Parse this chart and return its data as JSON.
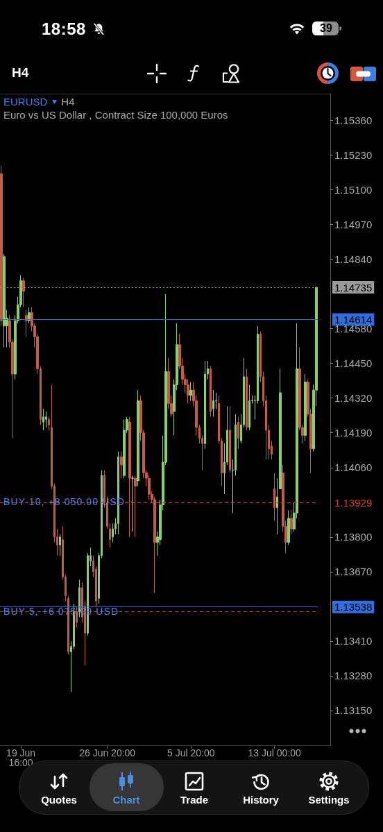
{
  "chart_data": {
    "type": "candlestick",
    "title": "EURUSD",
    "subtitle": "Euro vs US Dollar , Contract Size 100,000 Euros",
    "annotations": [
      "18:58",
      "39",
      "H4",
      "H4",
      {
        "text": "BUY 10, +8 050.00 USD",
        "y": 1.13929
      },
      {
        "text": "BUY 5, +6 075.00 USD",
        "y": 1.1352
      },
      "Quotes",
      "Chart",
      "Trade",
      "History",
      "Settings"
    ],
    "categories": [
      null,
      null,
      null,
      null,
      null,
      null,
      null,
      "19 Jun 16:00",
      null,
      null,
      null,
      null,
      null,
      null,
      null,
      null,
      null,
      null,
      null,
      null,
      null,
      null,
      null,
      null,
      null,
      null,
      null,
      null,
      null,
      null,
      null,
      null,
      null,
      null,
      null,
      null,
      null,
      null,
      "26 Jun 20:00",
      null,
      null,
      null,
      null,
      null,
      null,
      null,
      null,
      null,
      null,
      null,
      null,
      null,
      null,
      null,
      null,
      null,
      null,
      null,
      null,
      null,
      null,
      null,
      null,
      null,
      null,
      null,
      null,
      null,
      "5 Jul 20:00",
      null,
      null,
      null,
      null,
      null,
      null,
      null,
      null,
      null,
      null,
      null,
      null,
      null,
      null,
      null,
      null,
      null,
      null,
      null,
      null,
      null,
      null,
      null,
      null,
      null,
      null,
      null,
      null,
      null,
      "13 Jul 00:00",
      null,
      null,
      null,
      null,
      null,
      null,
      null,
      null,
      null,
      null,
      null,
      null,
      null,
      null,
      null
    ],
    "ohlc": [
      [
        1.1516,
        1.1519,
        1.1459,
        1.1461
      ],
      [
        1.1459,
        1.1486,
        1.1451,
        1.1485
      ],
      [
        1.1459,
        1.1465,
        1.1451,
        1.1462
      ],
      [
        1.1461,
        1.1463,
        1.1451,
        1.1453
      ],
      [
        1.1453,
        1.1454,
        1.1417,
        1.1441
      ],
      [
        1.1441,
        1.1463,
        1.1439,
        1.1461
      ],
      [
        1.1461,
        1.147,
        1.146,
        1.1467
      ],
      [
        1.1467,
        1.1478,
        1.1466,
        1.1476
      ],
      [
        1.1476,
        1.1477,
        1.1466,
        1.1472
      ],
      [
        1.1463,
        1.1465,
        1.1455,
        1.1461
      ],
      [
        1.1461,
        1.1466,
        1.146,
        1.1464
      ],
      [
        1.1464,
        1.1466,
        1.1457,
        1.1459
      ],
      [
        1.1459,
        1.146,
        1.1451,
        1.1455
      ],
      [
        1.1455,
        1.1456,
        1.1441,
        1.1443
      ],
      [
        1.1443,
        1.1444,
        1.1422,
        1.1424
      ],
      [
        1.1423,
        1.1428,
        1.142,
        1.1425
      ],
      [
        1.1424,
        1.1427,
        1.1421,
        1.1425
      ],
      [
        1.1424,
        1.1425,
        1.142,
        1.1422
      ],
      [
        1.1421,
        1.1437,
        1.1398,
        1.1399
      ],
      [
        1.1399,
        1.14,
        1.1378,
        1.138
      ],
      [
        1.138,
        1.1383,
        1.1373,
        1.1377
      ],
      [
        1.1377,
        1.1381,
        1.1373,
        1.138
      ],
      [
        1.1379,
        1.1384,
        1.1364,
        1.1365
      ],
      [
        1.1365,
        1.1366,
        1.1356,
        1.1358
      ],
      [
        1.1357,
        1.1358,
        1.1336,
        1.1337
      ],
      [
        1.1337,
        1.1341,
        1.1322,
        1.1339
      ],
      [
        1.1339,
        1.1355,
        1.1338,
        1.1352
      ],
      [
        1.1352,
        1.1354,
        1.1346,
        1.1348
      ],
      [
        1.1352,
        1.1364,
        1.135,
        1.1361
      ],
      [
        1.1361,
        1.1363,
        1.1348,
        1.135
      ],
      [
        1.1354,
        1.1356,
        1.1332,
        1.1344
      ],
      [
        1.1344,
        1.1374,
        1.1343,
        1.1373
      ],
      [
        1.1371,
        1.1376,
        1.1369,
        1.1373
      ],
      [
        1.1371,
        1.1373,
        1.1365,
        1.1367
      ],
      [
        1.1368,
        1.1369,
        1.1354,
        1.1356
      ],
      [
        1.1357,
        1.1374,
        1.1355,
        1.1373
      ],
      [
        1.1373,
        1.1405,
        1.1372,
        1.1403
      ],
      [
        1.1403,
        1.1405,
        1.1391,
        1.1393
      ],
      [
        1.1393,
        1.1395,
        1.1383,
        1.1384
      ],
      [
        1.1383,
        1.1385,
        1.1376,
        1.1379
      ],
      [
        1.138,
        1.1385,
        1.1378,
        1.1383
      ],
      [
        1.1383,
        1.1387,
        1.1381,
        1.1385
      ],
      [
        1.1385,
        1.1412,
        1.1381,
        1.141
      ],
      [
        1.141,
        1.1412,
        1.1402,
        1.1407
      ],
      [
        1.1403,
        1.1424,
        1.1402,
        1.142
      ],
      [
        1.142,
        1.1425,
        1.1419,
        1.1424
      ],
      [
        1.1423,
        1.1425,
        1.138,
        1.1402
      ],
      [
        1.1402,
        1.1403,
        1.1382,
        1.1402
      ],
      [
        1.1402,
        1.1403,
        1.138,
        1.1399
      ],
      [
        1.1401,
        1.1435,
        1.1399,
        1.1431
      ],
      [
        1.1431,
        1.1433,
        1.1416,
        1.1419
      ],
      [
        1.1419,
        1.142,
        1.1402,
        1.1404
      ],
      [
        1.1404,
        1.1405,
        1.1399,
        1.1402
      ],
      [
        1.1402,
        1.1403,
        1.1394,
        1.1396
      ],
      [
        1.1396,
        1.1397,
        1.1393,
        1.1394
      ],
      [
        1.1394,
        1.1395,
        1.1359,
        1.1378
      ],
      [
        1.1378,
        1.1382,
        1.1373,
        1.138
      ],
      [
        1.1379,
        1.1394,
        1.1377,
        1.1392
      ],
      [
        1.1392,
        1.1418,
        1.139,
        1.1408
      ],
      [
        1.1408,
        1.1471,
        1.1407,
        1.1442
      ],
      [
        1.1442,
        1.1447,
        1.1428,
        1.143
      ],
      [
        1.143,
        1.1433,
        1.1425,
        1.1426
      ],
      [
        1.1427,
        1.1439,
        1.1418,
        1.1437
      ],
      [
        1.1437,
        1.146,
        1.1435,
        1.1452
      ],
      [
        1.1452,
        1.1456,
        1.1443,
        1.1444
      ],
      [
        1.1444,
        1.1447,
        1.1437,
        1.1439
      ],
      [
        1.1439,
        1.1441,
        1.1434,
        1.1437
      ],
      [
        1.1437,
        1.1439,
        1.143,
        1.1433
      ],
      [
        1.1433,
        1.1438,
        1.1431,
        1.1435
      ],
      [
        1.1435,
        1.1438,
        1.1429,
        1.1431
      ],
      [
        1.1431,
        1.1433,
        1.1418,
        1.1421
      ],
      [
        1.1421,
        1.1422,
        1.1415,
        1.1417
      ],
      [
        1.1417,
        1.1418,
        1.1405,
        1.1415
      ],
      [
        1.1415,
        1.1446,
        1.1413,
        1.1441
      ],
      [
        1.1441,
        1.1446,
        1.1439,
        1.1443
      ],
      [
        1.1443,
        1.1444,
        1.1425,
        1.1427
      ],
      [
        1.1428,
        1.1435,
        1.1425,
        1.1431
      ],
      [
        1.1431,
        1.1434,
        1.1428,
        1.1431
      ],
      [
        1.143,
        1.1433,
        1.1415,
        1.1416
      ],
      [
        1.1416,
        1.1417,
        1.1399,
        1.1404
      ],
      [
        1.1404,
        1.1415,
        1.1396,
        1.1408
      ],
      [
        1.1408,
        1.1429,
        1.1407,
        1.142
      ],
      [
        1.142,
        1.1429,
        1.1404,
        1.1405
      ],
      [
        1.1405,
        1.1409,
        1.1389,
        1.1405
      ],
      [
        1.1405,
        1.1426,
        1.1403,
        1.1422
      ],
      [
        1.1423,
        1.1425,
        1.1413,
        1.1417
      ],
      [
        1.1416,
        1.1426,
        1.1415,
        1.1422
      ],
      [
        1.1422,
        1.1447,
        1.1421,
        1.144
      ],
      [
        1.144,
        1.1443,
        1.142,
        1.1421
      ],
      [
        1.1421,
        1.1437,
        1.142,
        1.1431
      ],
      [
        1.1431,
        1.1433,
        1.143,
        1.1431
      ],
      [
        1.1431,
        1.1433,
        1.1424,
        1.1431
      ],
      [
        1.1431,
        1.1459,
        1.143,
        1.1456
      ],
      [
        1.1456,
        1.1457,
        1.1438,
        1.144
      ],
      [
        1.144,
        1.1442,
        1.1429,
        1.1431
      ],
      [
        1.1431,
        1.1433,
        1.1409,
        1.142
      ],
      [
        1.142,
        1.1422,
        1.1409,
        1.1413
      ],
      [
        1.1414,
        1.1416,
        1.1409,
        1.1411
      ],
      [
        1.1398,
        1.1404,
        1.1386,
        1.1391
      ],
      [
        1.1391,
        1.1402,
        1.1381,
        1.1395
      ],
      [
        1.1398,
        1.1443,
        1.1398,
        1.1434
      ],
      [
        1.1404,
        1.1407,
        1.1382,
        1.1384
      ],
      [
        1.1384,
        1.1386,
        1.1374,
        1.1378
      ],
      [
        1.1378,
        1.139,
        1.1377,
        1.1387
      ],
      [
        1.1387,
        1.139,
        1.1381,
        1.1383
      ],
      [
        1.1383,
        1.1393,
        1.1382,
        1.1389
      ],
      [
        1.1389,
        1.146,
        1.1387,
        1.1443
      ],
      [
        1.1443,
        1.1451,
        1.142,
        1.1421
      ],
      [
        1.1421,
        1.1422,
        1.1415,
        1.1418
      ],
      [
        1.1418,
        1.1441,
        1.1416,
        1.1438
      ],
      [
        1.1438,
        1.1439,
        1.1425,
        1.1426
      ],
      [
        1.1426,
        1.1428,
        1.1404,
        1.1413
      ],
      [
        1.1413,
        1.1437,
        1.1412,
        1.1435
      ],
      [
        1.1435,
        1.14735,
        1.1429,
        1.14735
      ]
    ],
    "colors": [
      "#c45a48",
      "#86cf6b",
      "#86cf6b",
      "#c45a48",
      "#c45a48",
      "#86cf6b",
      "#86cf6b",
      "#86cf6b",
      "#c45a48",
      "#c45a48",
      "#86cf6b",
      "#c45a48",
      "#c45a48",
      "#c45a48",
      "#c45a48",
      "#86cf6b",
      "#86cf6b",
      "#c45a48",
      "#c45a48",
      "#c45a48",
      "#c45a48",
      "#86cf6b",
      "#c45a48",
      "#c45a48",
      "#c45a48",
      "#86cf6b",
      "#86cf6b",
      "#c45a48",
      "#86cf6b",
      "#c45a48",
      "#c45a48",
      "#86cf6b",
      "#86cf6b",
      "#c45a48",
      "#c45a48",
      "#86cf6b",
      "#86cf6b",
      "#c45a48",
      "#c45a48",
      "#c45a48",
      "#86cf6b",
      "#86cf6b",
      "#86cf6b",
      "#c45a48",
      "#86cf6b",
      "#86cf6b",
      "#c45a48",
      "#c8c8c8",
      "#c45a48",
      "#86cf6b",
      "#c45a48",
      "#c45a48",
      "#c45a48",
      "#c45a48",
      "#c45a48",
      "#c45a48",
      "#86cf6b",
      "#86cf6b",
      "#86cf6b",
      "#86cf6b",
      "#c45a48",
      "#c45a48",
      "#86cf6b",
      "#86cf6b",
      "#c45a48",
      "#c45a48",
      "#c45a48",
      "#c45a48",
      "#86cf6b",
      "#c45a48",
      "#c45a48",
      "#c45a48",
      "#c45a48",
      "#86cf6b",
      "#86cf6b",
      "#c45a48",
      "#86cf6b",
      "#c8c8c8",
      "#c45a48",
      "#c45a48",
      "#86cf6b",
      "#86cf6b",
      "#c45a48",
      "#c8c8c8",
      "#86cf6b",
      "#c45a48",
      "#86cf6b",
      "#86cf6b",
      "#c45a48",
      "#86cf6b",
      "#c8c8c8",
      "#c8c8c8",
      "#86cf6b",
      "#c45a48",
      "#c45a48",
      "#c45a48",
      "#c45a48",
      "#c45a48",
      "#c45a48",
      "#86cf6b",
      "#86cf6b",
      "#c45a48",
      "#c45a48",
      "#86cf6b",
      "#c45a48",
      "#86cf6b",
      "#86cf6b",
      "#c45a48",
      "#c45a48",
      "#86cf6b",
      "#c45a48",
      "#c45a48",
      "#86cf6b",
      "#86cf6b"
    ],
    "ylim": [
      1.1302,
      1.1546
    ],
    "yticks": [
      {
        "value": 1.1536,
        "label": "1.15360"
      },
      {
        "value": 1.1523,
        "label": "1.15230"
      },
      {
        "value": 1.151,
        "label": "1.15100"
      },
      {
        "value": 1.1497,
        "label": "1.14970"
      },
      {
        "value": 1.1484,
        "label": "1.14840"
      },
      {
        "value": 1.1458,
        "label": "1.14580"
      },
      {
        "value": 1.1445,
        "label": "1.14450"
      },
      {
        "value": 1.1432,
        "label": "1.14320"
      },
      {
        "value": 1.1419,
        "label": "1.14190"
      },
      {
        "value": 1.1406,
        "label": "1.14060"
      },
      {
        "value": 1.138,
        "label": "1.13800"
      },
      {
        "value": 1.1367,
        "label": "1.13670"
      },
      {
        "value": 1.1341,
        "label": "1.13410"
      },
      {
        "value": 1.1328,
        "label": "1.13280"
      },
      {
        "value": 1.1315,
        "label": "1.13150"
      }
    ],
    "ref_lines": [
      {
        "axis": "y",
        "value": 1.14735,
        "label": "1.14735",
        "color": "#9a9a9a",
        "line_style": "dotted"
      },
      {
        "axis": "y",
        "value": 1.14614,
        "label": "1.14614",
        "color": "#2f6de0",
        "line_style": "solid"
      },
      {
        "axis": "y",
        "value": 1.13929,
        "label": "1.13929",
        "color": "#d8392b",
        "line_style": "dashed"
      },
      {
        "axis": "y",
        "value": 1.13538,
        "label": "1.13538",
        "color": "#2f6de0",
        "line_style": "solid"
      },
      {
        "axis": "y",
        "value": 1.1352,
        "label": null,
        "color": "#d8392b",
        "line_style": "dashed"
      }
    ]
  }
}
